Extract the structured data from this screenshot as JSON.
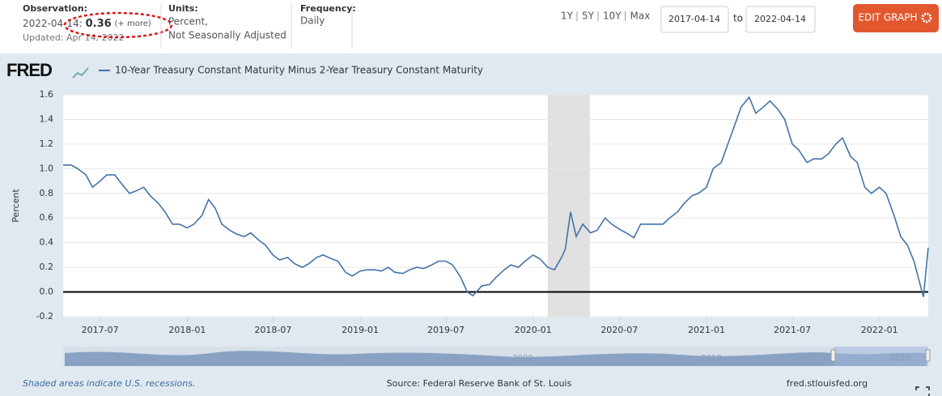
{
  "header": {
    "observation_label": "Observation:",
    "observation_date": "2022-04-14:",
    "observation_value": "0.36",
    "more_link": "(+ more)",
    "updated": "Updated: Apr 14, 2022",
    "units_label": "Units:",
    "units_line1": "Percent,",
    "units_line2": "Not Seasonally Adjusted",
    "frequency_label": "Frequency:",
    "frequency": "Daily",
    "range_buttons": [
      "1Y",
      "5Y",
      "10Y",
      "Max"
    ],
    "start_date": "2017-04-14",
    "to": "to",
    "end_date": "2022-04-14",
    "edit_button": "EDIT GRAPH"
  },
  "logo": "FRED",
  "chart_data": {
    "type": "line",
    "x": [
      "2017-04-14",
      "2017-05-01",
      "2017-05-15",
      "2017-06-01",
      "2017-06-15",
      "2017-07-01",
      "2017-07-15",
      "2017-08-01",
      "2017-08-15",
      "2017-09-01",
      "2017-09-15",
      "2017-10-01",
      "2017-10-15",
      "2017-11-01",
      "2017-11-15",
      "2017-12-01",
      "2017-12-15",
      "2018-01-01",
      "2018-01-15",
      "2018-02-01",
      "2018-02-15",
      "2018-03-01",
      "2018-03-15",
      "2018-04-01",
      "2018-04-15",
      "2018-05-01",
      "2018-05-15",
      "2018-06-01",
      "2018-06-15",
      "2018-07-01",
      "2018-07-15",
      "2018-08-01",
      "2018-08-15",
      "2018-09-01",
      "2018-09-15",
      "2018-10-01",
      "2018-10-15",
      "2018-11-01",
      "2018-11-15",
      "2018-12-01",
      "2018-12-15",
      "2019-01-01",
      "2019-01-15",
      "2019-02-01",
      "2019-02-15",
      "2019-03-01",
      "2019-03-15",
      "2019-04-01",
      "2019-04-15",
      "2019-05-01",
      "2019-05-15",
      "2019-06-01",
      "2019-06-15",
      "2019-07-01",
      "2019-07-15",
      "2019-08-01",
      "2019-08-15",
      "2019-08-27",
      "2019-09-15",
      "2019-10-01",
      "2019-10-15",
      "2019-11-01",
      "2019-11-15",
      "2019-12-01",
      "2019-12-15",
      "2020-01-01",
      "2020-01-15",
      "2020-02-01",
      "2020-02-15",
      "2020-03-01",
      "2020-03-09",
      "2020-03-20",
      "2020-04-01",
      "2020-04-15",
      "2020-05-01",
      "2020-05-15",
      "2020-06-01",
      "2020-06-15",
      "2020-07-01",
      "2020-07-15",
      "2020-08-01",
      "2020-08-15",
      "2020-09-01",
      "2020-09-15",
      "2020-10-01",
      "2020-10-15",
      "2020-11-01",
      "2020-11-15",
      "2020-12-01",
      "2020-12-15",
      "2021-01-01",
      "2021-01-15",
      "2021-02-01",
      "2021-02-15",
      "2021-03-01",
      "2021-03-15",
      "2021-04-01",
      "2021-04-15",
      "2021-05-01",
      "2021-05-15",
      "2021-06-01",
      "2021-06-15",
      "2021-07-01",
      "2021-07-15",
      "2021-08-01",
      "2021-08-15",
      "2021-09-01",
      "2021-09-15",
      "2021-10-01",
      "2021-10-15",
      "2021-11-01",
      "2021-11-15",
      "2021-12-01",
      "2021-12-15",
      "2022-01-01",
      "2022-01-15",
      "2022-02-01",
      "2022-02-15",
      "2022-03-01",
      "2022-03-15",
      "2022-04-01",
      "2022-04-04",
      "2022-04-14"
    ],
    "series": [
      {
        "name": "10-Year Treasury Constant Maturity Minus 2-Year Treasury Constant Maturity",
        "color": "#4572a7",
        "values": [
          1.03,
          1.03,
          1.0,
          0.95,
          0.85,
          0.9,
          0.95,
          0.95,
          0.88,
          0.8,
          0.82,
          0.85,
          0.78,
          0.72,
          0.65,
          0.55,
          0.55,
          0.52,
          0.55,
          0.62,
          0.75,
          0.68,
          0.55,
          0.5,
          0.47,
          0.45,
          0.48,
          0.42,
          0.38,
          0.3,
          0.26,
          0.28,
          0.23,
          0.2,
          0.23,
          0.28,
          0.3,
          0.27,
          0.25,
          0.16,
          0.13,
          0.17,
          0.18,
          0.18,
          0.17,
          0.2,
          0.16,
          0.15,
          0.18,
          0.2,
          0.19,
          0.22,
          0.25,
          0.25,
          0.22,
          0.12,
          0.0,
          -0.03,
          0.05,
          0.06,
          0.12,
          0.18,
          0.22,
          0.2,
          0.25,
          0.3,
          0.27,
          0.2,
          0.18,
          0.28,
          0.35,
          0.65,
          0.45,
          0.55,
          0.48,
          0.5,
          0.6,
          0.55,
          0.51,
          0.48,
          0.44,
          0.55,
          0.55,
          0.55,
          0.55,
          0.6,
          0.65,
          0.72,
          0.78,
          0.8,
          0.85,
          1.0,
          1.05,
          1.2,
          1.35,
          1.5,
          1.58,
          1.45,
          1.5,
          1.55,
          1.48,
          1.4,
          1.2,
          1.15,
          1.05,
          1.08,
          1.08,
          1.12,
          1.2,
          1.25,
          1.1,
          1.05,
          0.85,
          0.8,
          0.85,
          0.8,
          0.62,
          0.45,
          0.38,
          0.25,
          0.0,
          -0.04,
          0.36
        ]
      }
    ],
    "recessions": [
      [
        "2020-02-01",
        "2020-04-30"
      ]
    ],
    "ylabel": "Percent",
    "xlim": [
      "2017-04-14",
      "2022-04-14"
    ],
    "xticks": [
      {
        "value": "2017-07-01",
        "label": "2017-07"
      },
      {
        "value": "2018-01-01",
        "label": "2018-01"
      },
      {
        "value": "2018-07-01",
        "label": "2018-07"
      },
      {
        "value": "2019-01-01",
        "label": "2019-01"
      },
      {
        "value": "2019-07-01",
        "label": "2019-07"
      },
      {
        "value": "2020-01-01",
        "label": "2020-01"
      },
      {
        "value": "2020-07-01",
        "label": "2020-07"
      },
      {
        "value": "2021-01-01",
        "label": "2021-01"
      },
      {
        "value": "2021-07-01",
        "label": "2021-07"
      },
      {
        "value": "2022-01-01",
        "label": "2022-01"
      }
    ],
    "ylim": [
      -0.2,
      1.6
    ],
    "yticks": [
      -0.2,
      {
        "value": 0,
        "label": "0.0"
      },
      0.2,
      0.4,
      0.6,
      0.8,
      {
        "value": 1,
        "label": "1.0"
      },
      1.2,
      1.4,
      1.6
    ],
    "grid": true
  },
  "navigator_labels": [
    "1980",
    "1990",
    "2000",
    "2010",
    "2020"
  ],
  "footer": {
    "note": "Shaded areas indicate U.S. recessions.",
    "source": "Source: Federal Reserve Bank of St. Louis",
    "site": "fred.stlouisfed.org"
  }
}
